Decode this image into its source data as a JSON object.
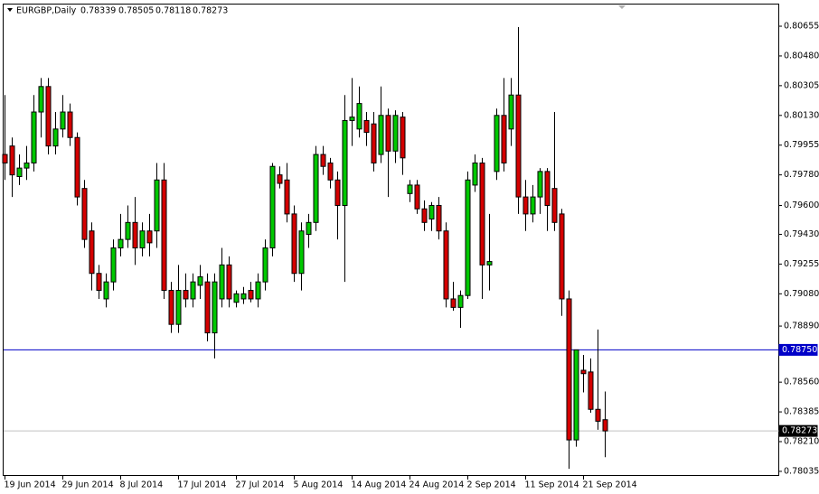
{
  "chart_data": {
    "type": "candlestick",
    "title": "EURGBP,Daily",
    "categories": [
      "19 Jun 2014",
      null,
      null,
      null,
      null,
      null,
      null,
      null,
      "29 Jun 2014",
      null,
      null,
      null,
      null,
      null,
      null,
      null,
      "8 Jul 2014",
      null,
      null,
      null,
      null,
      null,
      null,
      null,
      "17 Jul 2014",
      null,
      null,
      null,
      null,
      null,
      null,
      null,
      "27 Jul 2014",
      null,
      null,
      null,
      null,
      null,
      null,
      null,
      "5 Aug 2014",
      null,
      null,
      null,
      null,
      null,
      null,
      null,
      "14 Aug 2014",
      null,
      null,
      null,
      null,
      null,
      null,
      null,
      "24 Aug 2014",
      null,
      null,
      null,
      null,
      null,
      null,
      null,
      "2 Sep 2014",
      null,
      null,
      null,
      null,
      null,
      null,
      null,
      "11 Sep 2014",
      null,
      null,
      null,
      null,
      null,
      null,
      null,
      "21 Sep 2014",
      null,
      null,
      null
    ],
    "open": [
      0.799,
      0.7995,
      0.7977,
      0.7982,
      0.7985,
      0.8015,
      0.803,
      0.7995,
      0.8005,
      0.8015,
      0.8,
      0.797,
      0.7945,
      0.792,
      0.7905,
      0.7915,
      0.7935,
      0.794,
      0.795,
      0.7935,
      0.7945,
      0.7945,
      0.7975,
      0.791,
      0.789,
      0.791,
      0.7905,
      0.7913,
      0.7915,
      0.7885,
      0.7905,
      0.7925,
      0.7903,
      0.7905,
      0.791,
      0.7905,
      0.7915,
      0.7935,
      0.7978,
      0.7975,
      0.7955,
      0.792,
      0.7943,
      0.795,
      0.799,
      0.7985,
      0.7975,
      0.796,
      0.801,
      0.8005,
      0.801,
      0.8008,
      0.799,
      0.8013,
      0.7992,
      0.8012,
      0.7967,
      0.7972,
      0.7958,
      0.7952,
      0.796,
      0.7945,
      0.7905,
      0.79,
      0.7907,
      0.7972,
      0.7985,
      0.7925,
      0.798,
      0.8013,
      0.8005,
      0.8025,
      0.7965,
      0.7955,
      0.7965,
      0.798,
      0.797,
      0.7955,
      0.7905,
      0.7822,
      0.7863,
      0.7862,
      0.784,
      0.78339
    ],
    "high": [
      0.8025,
      0.8,
      0.799,
      0.7995,
      0.8025,
      0.8035,
      0.8035,
      0.8015,
      0.8025,
      0.802,
      0.8003,
      0.7975,
      0.795,
      0.7925,
      0.792,
      0.794,
      0.7955,
      0.796,
      0.7965,
      0.795,
      0.7955,
      0.7985,
      0.7985,
      0.7915,
      0.7925,
      0.792,
      0.792,
      0.7925,
      0.792,
      0.792,
      0.7935,
      0.793,
      0.791,
      0.7912,
      0.7915,
      0.792,
      0.794,
      0.7985,
      0.7983,
      0.7985,
      0.796,
      0.795,
      0.7955,
      0.7995,
      0.7995,
      0.7988,
      0.798,
      0.8025,
      0.8035,
      0.803,
      0.8015,
      0.8015,
      0.803,
      0.8017,
      0.8016,
      0.8015,
      0.7975,
      0.7975,
      0.7963,
      0.7962,
      0.7965,
      0.795,
      0.7915,
      0.791,
      0.798,
      0.799,
      0.7988,
      0.7955,
      0.8017,
      0.8035,
      0.8035,
      0.8065,
      0.7975,
      0.7972,
      0.7982,
      0.7982,
      0.8015,
      0.7958,
      0.791,
      0.7875,
      0.7872,
      0.787,
      0.7887,
      0.78505
    ],
    "low": [
      0.7975,
      0.7965,
      0.7972,
      0.7975,
      0.798,
      0.8,
      0.799,
      0.799,
      0.8,
      0.7995,
      0.796,
      0.7935,
      0.791,
      0.7905,
      0.79,
      0.791,
      0.793,
      0.7935,
      0.7925,
      0.793,
      0.793,
      0.7935,
      0.7905,
      0.7885,
      0.7885,
      0.79,
      0.79,
      0.7905,
      0.788,
      0.787,
      0.79,
      0.79,
      0.79,
      0.7902,
      0.7903,
      0.79,
      0.791,
      0.793,
      0.797,
      0.795,
      0.7915,
      0.791,
      0.7935,
      0.7945,
      0.7978,
      0.797,
      0.794,
      0.7915,
      0.7995,
      0.8,
      0.7995,
      0.798,
      0.7985,
      0.7965,
      0.7985,
      0.7978,
      0.7962,
      0.7955,
      0.7945,
      0.7945,
      0.794,
      0.79,
      0.7898,
      0.7888,
      0.7905,
      0.7968,
      0.7905,
      0.791,
      0.7975,
      0.798,
      0.7995,
      0.7955,
      0.7945,
      0.795,
      0.7955,
      0.7945,
      0.7945,
      0.7895,
      0.7805,
      0.7818,
      0.785,
      0.7838,
      0.7828,
      0.78118
    ],
    "close": [
      0.7985,
      0.7978,
      0.7982,
      0.7985,
      0.8015,
      0.803,
      0.7995,
      0.8005,
      0.8015,
      0.8,
      0.7965,
      0.794,
      0.792,
      0.791,
      0.7915,
      0.7935,
      0.794,
      0.795,
      0.7935,
      0.7945,
      0.7938,
      0.7975,
      0.791,
      0.789,
      0.791,
      0.7905,
      0.7915,
      0.7918,
      0.7885,
      0.7915,
      0.7925,
      0.7905,
      0.7908,
      0.7908,
      0.7905,
      0.7915,
      0.7935,
      0.7983,
      0.7973,
      0.7955,
      0.792,
      0.7945,
      0.795,
      0.799,
      0.7983,
      0.7975,
      0.796,
      0.801,
      0.8012,
      0.802,
      0.8003,
      0.7985,
      0.8013,
      0.7992,
      0.8013,
      0.7988,
      0.7972,
      0.7958,
      0.795,
      0.796,
      0.7945,
      0.7905,
      0.79,
      0.7907,
      0.7975,
      0.7985,
      0.7925,
      0.7927,
      0.8013,
      0.7985,
      0.8025,
      0.7965,
      0.7955,
      0.7965,
      0.798,
      0.796,
      0.795,
      0.7905,
      0.7822,
      0.7875,
      0.7861,
      0.784,
      0.7833,
      0.78273
    ],
    "up_color": "#00c800",
    "down_color": "#d40000",
    "ylim": [
      0.78008,
      0.80788
    ],
    "yticks": [
      0.80655,
      {
        "value": 0.8048,
        "label": "0.80480"
      },
      0.80305,
      {
        "value": 0.8013,
        "label": "0.80130"
      },
      0.79955,
      {
        "value": 0.7978,
        "label": "0.79780"
      },
      {
        "value": 0.796,
        "label": "0.79600"
      },
      {
        "value": 0.7943,
        "label": "0.79430"
      },
      0.79255,
      {
        "value": 0.7908,
        "label": "0.79080"
      },
      {
        "value": 0.7889,
        "label": "0.78890"
      },
      {
        "value": 0.7856,
        "label": "0.78560"
      },
      0.78385,
      {
        "value": 0.7821,
        "label": "0.78210"
      },
      0.78035
    ],
    "level_line": {
      "value": 0.7875,
      "label": "0.78750",
      "color": "#0000c8"
    },
    "price_line": {
      "value": 0.78273,
      "color": "#c0c0c0"
    }
  }
}
